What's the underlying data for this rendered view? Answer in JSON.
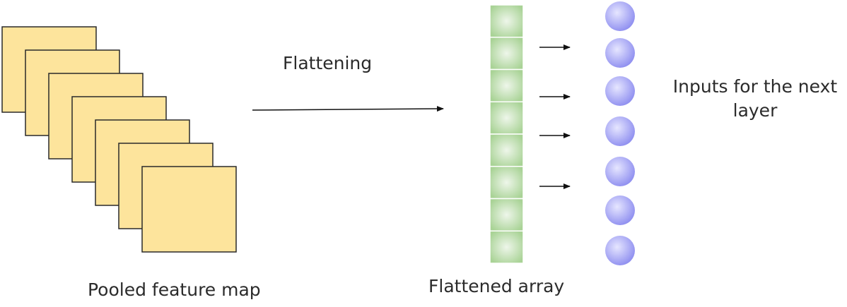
{
  "diagram": {
    "colors": {
      "feature_map_fill": "#fde49c",
      "feature_map_stroke": "#2a2a2a",
      "array_cell_center": "#eef6ea",
      "array_cell_edge": "#a9d396",
      "array_cell_stroke": "#ffffff",
      "node_center": "#e6e6ff",
      "node_edge": "#8f8ff0",
      "arrow": "#111111"
    },
    "feature_maps": {
      "count": 7,
      "name": "pooled-feature-map"
    },
    "flattened_array": {
      "cell_count": 8
    },
    "nodes": {
      "count": 7
    },
    "labels": {
      "pooled_feature_map": "Pooled feature map",
      "flattening": "Flattening",
      "flattened_array": "Flattened array",
      "inputs_next_layer": "Inputs for the next layer"
    }
  }
}
